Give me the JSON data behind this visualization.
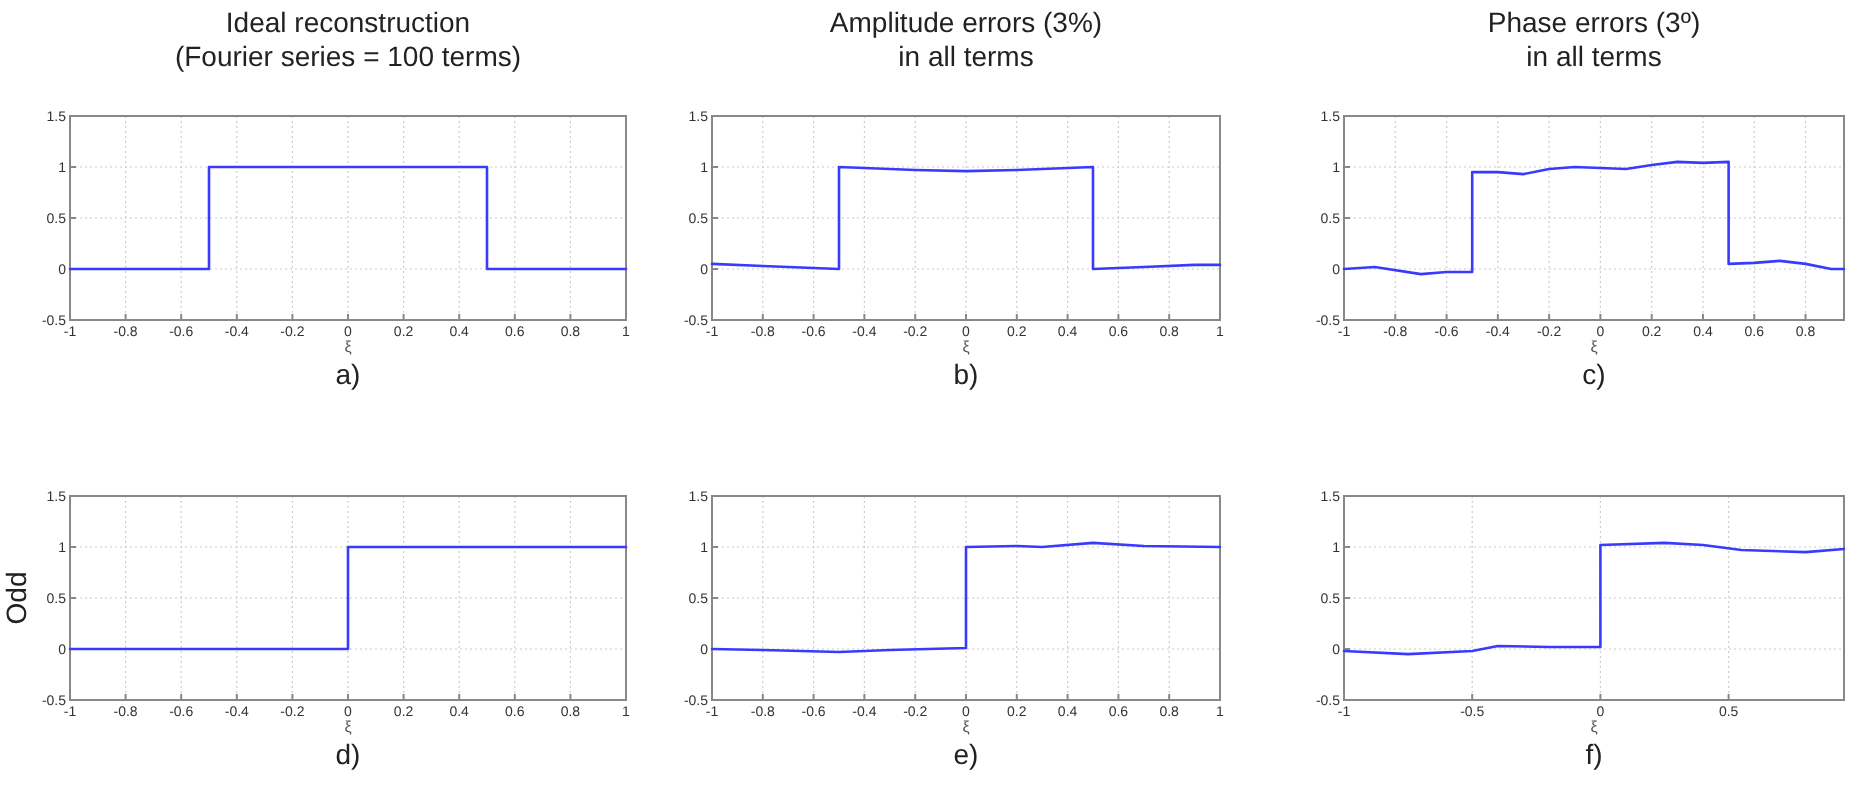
{
  "chart_data": [
    {
      "type": "line",
      "title": "Ideal reconstruction\n(Fourier series = 100 terms)",
      "xlabel": "ξ",
      "annotations": [
        "a)"
      ],
      "xlim": [
        -1,
        1
      ],
      "ylim": [
        -0.5,
        1.5
      ],
      "xticks": [
        -1,
        -0.8,
        -0.6,
        -0.4,
        -0.2,
        0,
        0.2,
        0.4,
        0.6,
        0.8,
        1
      ],
      "yticks": [
        -0.5,
        0,
        0.5,
        1,
        1.5
      ],
      "grid": true,
      "series": [
        {
          "color": "#3a3aff",
          "x": [
            -1,
            -0.5,
            -0.5,
            0.5,
            0.5,
            1
          ],
          "values": [
            0,
            0,
            1,
            1,
            0,
            0
          ]
        }
      ]
    },
    {
      "type": "line",
      "title": "Amplitude errors (3%)\nin all terms",
      "xlabel": "ξ",
      "annotations": [
        "b)"
      ],
      "xlim": [
        -1,
        1
      ],
      "ylim": [
        -0.5,
        1.5
      ],
      "xticks": [
        -1,
        -0.8,
        -0.6,
        -0.4,
        -0.2,
        0,
        0.2,
        0.4,
        0.6,
        0.8,
        1
      ],
      "yticks": [
        -0.5,
        0,
        0.5,
        1,
        1.5
      ],
      "grid": true,
      "series": [
        {
          "color": "#3a3aff",
          "x": [
            -1,
            -0.8,
            -0.5,
            -0.5,
            -0.2,
            0,
            0.2,
            0.5,
            0.5,
            0.7,
            0.9,
            1
          ],
          "values": [
            0.05,
            0.03,
            0,
            1,
            0.97,
            0.96,
            0.97,
            1,
            0,
            0.02,
            0.04,
            0.04
          ]
        }
      ]
    },
    {
      "type": "line",
      "title": "Phase errors (3º)\nin all terms",
      "xlabel": "ξ",
      "annotations": [
        "c)"
      ],
      "xlim": [
        -1,
        0.95
      ],
      "ylim": [
        -0.5,
        1.5
      ],
      "xticks": [
        -1,
        -0.8,
        -0.6,
        -0.4,
        -0.2,
        0,
        0.2,
        0.4,
        0.6,
        0.8
      ],
      "yticks": [
        -0.5,
        0,
        0.5,
        1,
        1.5
      ],
      "grid": true,
      "series": [
        {
          "color": "#3a3aff",
          "x": [
            -1,
            -0.88,
            -0.7,
            -0.6,
            -0.5,
            -0.5,
            -0.4,
            -0.3,
            -0.2,
            -0.1,
            0,
            0.1,
            0.2,
            0.3,
            0.4,
            0.5,
            0.5,
            0.6,
            0.7,
            0.8,
            0.9,
            0.95
          ],
          "values": [
            0,
            0.02,
            -0.05,
            -0.03,
            -0.03,
            0.95,
            0.95,
            0.93,
            0.98,
            1,
            0.99,
            0.98,
            1.02,
            1.05,
            1.04,
            1.05,
            0.05,
            0.06,
            0.08,
            0.05,
            0,
            0
          ]
        }
      ]
    },
    {
      "type": "line",
      "xlabel": "ξ",
      "ylabel": "Odd",
      "annotations": [
        "d)"
      ],
      "xlim": [
        -1,
        1
      ],
      "ylim": [
        -0.5,
        1.5
      ],
      "xticks": [
        -1,
        -0.8,
        -0.6,
        -0.4,
        -0.2,
        0,
        0.2,
        0.4,
        0.6,
        0.8,
        1
      ],
      "yticks": [
        -0.5,
        0,
        0.5,
        1,
        1.5
      ],
      "grid": true,
      "series": [
        {
          "color": "#3a3aff",
          "x": [
            -1,
            0,
            0,
            1
          ],
          "values": [
            0,
            0,
            1,
            1
          ]
        }
      ]
    },
    {
      "type": "line",
      "xlabel": "ξ",
      "annotations": [
        "e)"
      ],
      "xlim": [
        -1,
        1
      ],
      "ylim": [
        -0.5,
        1.5
      ],
      "xticks": [
        -1,
        -0.8,
        -0.6,
        -0.4,
        -0.2,
        0,
        0.2,
        0.4,
        0.6,
        0.8,
        1
      ],
      "yticks": [
        -0.5,
        0,
        0.5,
        1,
        1.5
      ],
      "grid": true,
      "series": [
        {
          "color": "#3a3aff",
          "x": [
            -1,
            -0.8,
            -0.5,
            -0.3,
            0,
            0,
            0.2,
            0.3,
            0.5,
            0.7,
            1
          ],
          "values": [
            0,
            -0.01,
            -0.03,
            -0.01,
            0.01,
            1,
            1.01,
            1,
            1.04,
            1.01,
            1
          ]
        }
      ]
    },
    {
      "type": "line",
      "xlabel": "ξ",
      "annotations": [
        "f)"
      ],
      "xlim": [
        -1,
        0.95
      ],
      "ylim": [
        -0.5,
        1.5
      ],
      "xticks": [
        -1,
        -0.5,
        0,
        0.5
      ],
      "yticks": [
        -0.5,
        0,
        0.5,
        1,
        1.5
      ],
      "grid": true,
      "series": [
        {
          "color": "#3a3aff",
          "x": [
            -1,
            -0.75,
            -0.5,
            -0.4,
            -0.2,
            0,
            0,
            0.25,
            0.4,
            0.55,
            0.8,
            0.95
          ],
          "values": [
            -0.02,
            -0.05,
            -0.02,
            0.03,
            0.02,
            0.02,
            1.02,
            1.04,
            1.02,
            0.97,
            0.95,
            0.98
          ]
        }
      ]
    }
  ]
}
